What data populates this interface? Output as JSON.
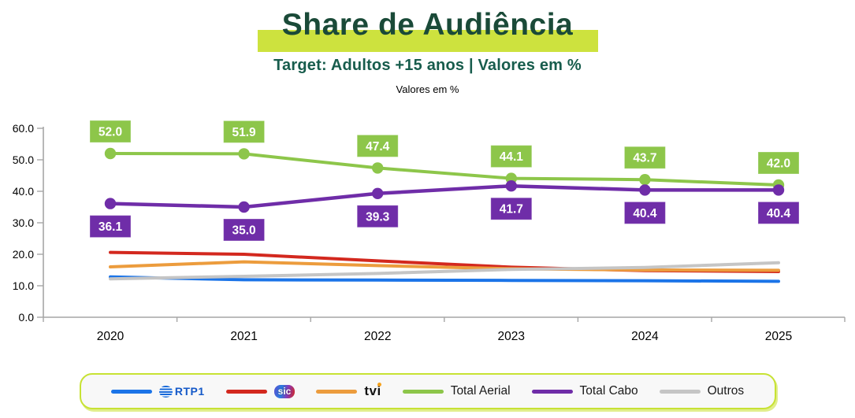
{
  "header": {
    "title": "Share de Audiência",
    "subtitle": "Target: Adultos +15 anos | Valores em %",
    "note": "Valores em %"
  },
  "colors": {
    "title_text": "#1a4a38",
    "subtitle_text": "#175c4c",
    "highlight": "#cde23e",
    "legend_border": "#c7e234",
    "axis_line": "#a6a6a6",
    "tick_text": "#000000"
  },
  "chart_data": {
    "type": "line",
    "title": "Valores em %",
    "categories": [
      "2020",
      "2021",
      "2022",
      "2023",
      "2024",
      "2025"
    ],
    "xlabel": "",
    "ylabel": "",
    "ylim": [
      0,
      60
    ],
    "ytick_step": 10,
    "yticks": [
      {
        "value": 60,
        "label": "60.0"
      },
      {
        "value": 50,
        "label": "50.0"
      },
      {
        "value": 40,
        "label": "40.0"
      },
      {
        "value": 30,
        "label": "30.0"
      },
      {
        "value": 20,
        "label": "20.0"
      },
      {
        "value": 10,
        "label": "10.0"
      },
      {
        "value": 0,
        "label": "0.0"
      }
    ],
    "grid": false,
    "legend_position": "bottom",
    "series": [
      {
        "id": "rtp1",
        "name": "RTP1",
        "color": "#1b74e8",
        "width": 4,
        "markers": false,
        "labels": "none",
        "values": [
          12.8,
          11.9,
          11.8,
          11.7,
          11.6,
          11.4
        ]
      },
      {
        "id": "sic",
        "name": "SIC",
        "color": "#d3281e",
        "width": 4,
        "markers": false,
        "labels": "none",
        "values": [
          20.6,
          20.0,
          17.9,
          15.9,
          14.8,
          14.5
        ]
      },
      {
        "id": "tvi",
        "name": "TVI",
        "color": "#ec9c3d",
        "width": 4,
        "markers": false,
        "labels": "none",
        "values": [
          16.0,
          17.6,
          16.4,
          15.4,
          15.0,
          14.9
        ]
      },
      {
        "id": "aerial",
        "name": "Total Aerial",
        "color": "#8dc64a",
        "width": 4,
        "markers": true,
        "labels": "above",
        "values": [
          52.0,
          51.9,
          47.4,
          44.1,
          43.7,
          42.0
        ],
        "label_texts": [
          "52.0",
          "51.9",
          "47.4",
          "44.1",
          "43.7",
          "42.0"
        ]
      },
      {
        "id": "cabo",
        "name": "Total Cabo",
        "color": "#6f2da8",
        "width": 4.5,
        "markers": true,
        "labels": "below",
        "values": [
          36.1,
          35.0,
          39.3,
          41.7,
          40.4,
          40.4
        ],
        "label_texts": [
          "36.1",
          "35.0",
          "39.3",
          "41.7",
          "40.4",
          "40.4"
        ]
      },
      {
        "id": "outros",
        "name": "Outros",
        "color": "#c5c5c5",
        "width": 4,
        "markers": false,
        "labels": "none",
        "values": [
          12.2,
          13.0,
          13.9,
          15.2,
          15.8,
          17.3
        ]
      }
    ],
    "draw_order": [
      1,
      2,
      0,
      5,
      3,
      4
    ]
  },
  "legend": {
    "items": [
      {
        "id": "rtp1",
        "label": "RTP1",
        "color": "#1b74e8",
        "logo": "rtp1"
      },
      {
        "id": "sic",
        "label": "sic",
        "color": "#d3281e",
        "logo": "sic"
      },
      {
        "id": "tvi",
        "label": "tvi",
        "color": "#ec9c3d",
        "logo": "tvi"
      },
      {
        "id": "aerial",
        "label": "Total Aerial",
        "color": "#8dc64a",
        "logo": "text"
      },
      {
        "id": "cabo",
        "label": "Total Cabo",
        "color": "#6f2da8",
        "logo": "text"
      },
      {
        "id": "outros",
        "label": "Outros",
        "color": "#c5c5c5",
        "logo": "text"
      }
    ]
  }
}
